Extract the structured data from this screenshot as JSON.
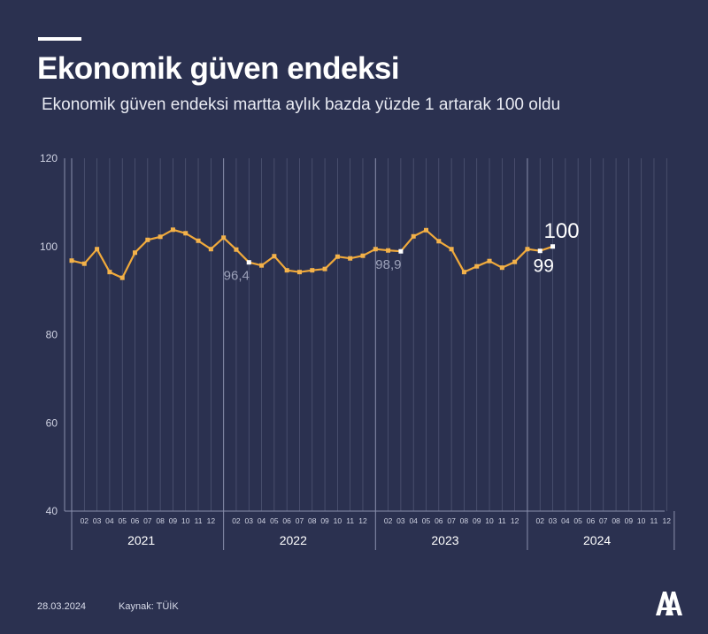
{
  "header": {
    "title": "Ekonomik güven endeksi",
    "subtitle": "Ekonomik güven endeksi martta aylık bazda yüzde 1 artarak 100 oldu"
  },
  "footer": {
    "date": "28.03.2024",
    "source": "Kaynak: TÜİK"
  },
  "colors": {
    "background": "#2b3150",
    "line": "#f0a93a",
    "marker": "#f3b24b",
    "grid": "#545a78",
    "highlight": "#ffffff"
  },
  "chart_data": {
    "type": "line",
    "title": "",
    "xlabel": "",
    "ylabel": "",
    "ylim": [
      40,
      120
    ],
    "yticks": [
      40,
      60,
      80,
      100,
      120
    ],
    "years": [
      "2021",
      "2022",
      "2023",
      "2024"
    ],
    "month_tick_labels": [
      "02",
      "03",
      "04",
      "05",
      "06",
      "07",
      "08",
      "09",
      "10",
      "11",
      "12"
    ],
    "series": [
      {
        "values": [
          96.8,
          96.1,
          99.4,
          94.2,
          92.9,
          98.6,
          101.5,
          102.2,
          103.8,
          103.0,
          101.3,
          99.4,
          102.0,
          99.3,
          96.4,
          95.7,
          97.8,
          94.6,
          94.2,
          94.6,
          94.9,
          97.7,
          97.3,
          97.9,
          99.4,
          99.1,
          98.9,
          102.3,
          103.7,
          101.2,
          99.4,
          94.2,
          95.5,
          96.7,
          95.2,
          96.5,
          99.4,
          99.0,
          100.0
        ]
      }
    ],
    "annotations": [
      {
        "index": 14,
        "label": "96,4"
      },
      {
        "index": 26,
        "label": "98,9"
      },
      {
        "index": 37,
        "label": "99"
      },
      {
        "index": 38,
        "label": "100"
      }
    ]
  }
}
